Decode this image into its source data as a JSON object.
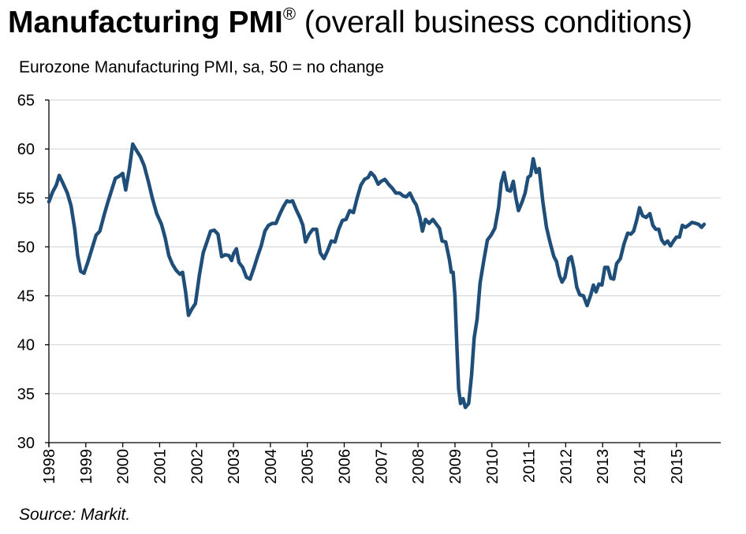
{
  "header": {
    "title_bold": "Manufacturing PMI",
    "title_reg": "®",
    "title_rest": " (overall business conditions)",
    "subtitle": "Eurozone Manufacturing PMI, sa, 50 = no change"
  },
  "footer": {
    "source": "Source: Markit."
  },
  "colors": {
    "line": "#1f4e79",
    "grid": "#d0d0d0",
    "axis": "#000000"
  },
  "chart_data": {
    "type": "line",
    "title": "Manufacturing PMI® (overall business conditions)",
    "subtitle": "Eurozone Manufacturing PMI, sa, 50 = no change",
    "xlabel": "",
    "ylabel": "",
    "ylim": [
      30,
      65
    ],
    "xlim": [
      1998,
      2016.2
    ],
    "yticks": [
      30,
      35,
      40,
      45,
      50,
      55,
      60,
      65
    ],
    "xticks": [
      "1998",
      "1999",
      "2000",
      "2001",
      "2002",
      "2003",
      "2004",
      "2005",
      "2006",
      "2007",
      "2008",
      "2009",
      "2010",
      "2011",
      "2012",
      "2013",
      "2014",
      "2015"
    ],
    "grid": true,
    "series": [
      {
        "points": [
          [
            1998.0,
            54.6
          ],
          [
            1998.1,
            55.6
          ],
          [
            1998.2,
            56.3
          ],
          [
            1998.28,
            57.3
          ],
          [
            1998.38,
            56.5
          ],
          [
            1998.5,
            55.5
          ],
          [
            1998.6,
            54.2
          ],
          [
            1998.7,
            51.8
          ],
          [
            1998.78,
            49.1
          ],
          [
            1998.86,
            47.5
          ],
          [
            1998.95,
            47.3
          ],
          [
            1999.05,
            48.4
          ],
          [
            1999.15,
            49.6
          ],
          [
            1999.28,
            51.2
          ],
          [
            1999.38,
            51.6
          ],
          [
            1999.5,
            53.3
          ],
          [
            1999.6,
            54.6
          ],
          [
            1999.7,
            55.8
          ],
          [
            1999.8,
            57.0
          ],
          [
            1999.9,
            57.2
          ],
          [
            2000.0,
            57.5
          ],
          [
            2000.08,
            55.8
          ],
          [
            2000.18,
            58.0
          ],
          [
            2000.27,
            60.5
          ],
          [
            2000.38,
            59.8
          ],
          [
            2000.48,
            59.2
          ],
          [
            2000.58,
            58.3
          ],
          [
            2000.7,
            56.6
          ],
          [
            2000.8,
            55.0
          ],
          [
            2000.92,
            53.4
          ],
          [
            2001.05,
            52.3
          ],
          [
            2001.15,
            50.9
          ],
          [
            2001.25,
            49.1
          ],
          [
            2001.35,
            48.2
          ],
          [
            2001.45,
            47.6
          ],
          [
            2001.55,
            47.2
          ],
          [
            2001.62,
            47.4
          ],
          [
            2001.7,
            45.5
          ],
          [
            2001.78,
            43.0
          ],
          [
            2001.88,
            43.7
          ],
          [
            2001.97,
            44.2
          ],
          [
            2002.08,
            47.2
          ],
          [
            2002.18,
            49.4
          ],
          [
            2002.28,
            50.5
          ],
          [
            2002.38,
            51.6
          ],
          [
            2002.48,
            51.7
          ],
          [
            2002.58,
            51.3
          ],
          [
            2002.68,
            49.0
          ],
          [
            2002.78,
            49.2
          ],
          [
            2002.88,
            49.1
          ],
          [
            2002.95,
            48.6
          ],
          [
            2003.0,
            49.3
          ],
          [
            2003.08,
            49.8
          ],
          [
            2003.15,
            48.4
          ],
          [
            2003.25,
            47.9
          ],
          [
            2003.35,
            46.9
          ],
          [
            2003.45,
            46.7
          ],
          [
            2003.55,
            47.8
          ],
          [
            2003.65,
            49.0
          ],
          [
            2003.75,
            50.1
          ],
          [
            2003.85,
            51.6
          ],
          [
            2003.95,
            52.2
          ],
          [
            2004.05,
            52.4
          ],
          [
            2004.15,
            52.4
          ],
          [
            2004.25,
            53.3
          ],
          [
            2004.35,
            54.1
          ],
          [
            2004.45,
            54.7
          ],
          [
            2004.52,
            54.6
          ],
          [
            2004.6,
            54.7
          ],
          [
            2004.7,
            53.8
          ],
          [
            2004.8,
            53.0
          ],
          [
            2004.88,
            52.2
          ],
          [
            2004.95,
            50.5
          ],
          [
            2005.05,
            51.3
          ],
          [
            2005.15,
            51.8
          ],
          [
            2005.25,
            51.8
          ],
          [
            2005.35,
            49.4
          ],
          [
            2005.45,
            48.8
          ],
          [
            2005.55,
            49.6
          ],
          [
            2005.65,
            50.6
          ],
          [
            2005.75,
            50.5
          ],
          [
            2005.85,
            51.8
          ],
          [
            2005.95,
            52.7
          ],
          [
            2006.05,
            52.8
          ],
          [
            2006.15,
            53.7
          ],
          [
            2006.25,
            53.5
          ],
          [
            2006.35,
            55.0
          ],
          [
            2006.45,
            56.3
          ],
          [
            2006.55,
            56.9
          ],
          [
            2006.65,
            57.1
          ],
          [
            2006.72,
            57.6
          ],
          [
            2006.82,
            57.2
          ],
          [
            2006.92,
            56.4
          ],
          [
            2007.0,
            56.7
          ],
          [
            2007.1,
            56.9
          ],
          [
            2007.2,
            56.4
          ],
          [
            2007.3,
            56.0
          ],
          [
            2007.4,
            55.5
          ],
          [
            2007.5,
            55.5
          ],
          [
            2007.6,
            55.2
          ],
          [
            2007.68,
            55.1
          ],
          [
            2007.78,
            55.5
          ],
          [
            2007.88,
            54.7
          ],
          [
            2007.95,
            54.3
          ],
          [
            2008.05,
            53.0
          ],
          [
            2008.12,
            51.6
          ],
          [
            2008.2,
            52.8
          ],
          [
            2008.3,
            52.4
          ],
          [
            2008.4,
            52.8
          ],
          [
            2008.5,
            52.3
          ],
          [
            2008.58,
            51.9
          ],
          [
            2008.65,
            50.6
          ],
          [
            2008.75,
            50.5
          ],
          [
            2008.85,
            48.7
          ],
          [
            2008.9,
            47.4
          ],
          [
            2008.95,
            47.4
          ],
          [
            2009.0,
            45.0
          ],
          [
            2009.05,
            40.0
          ],
          [
            2009.1,
            35.5
          ],
          [
            2009.15,
            34.0
          ],
          [
            2009.22,
            34.5
          ],
          [
            2009.28,
            33.6
          ],
          [
            2009.37,
            34.0
          ],
          [
            2009.45,
            36.9
          ],
          [
            2009.52,
            40.7
          ],
          [
            2009.6,
            42.6
          ],
          [
            2009.68,
            46.3
          ],
          [
            2009.78,
            48.6
          ],
          [
            2009.88,
            50.7
          ],
          [
            2009.98,
            51.2
          ],
          [
            2010.08,
            51.9
          ],
          [
            2010.18,
            54.0
          ],
          [
            2010.25,
            56.5
          ],
          [
            2010.33,
            57.6
          ],
          [
            2010.42,
            55.8
          ],
          [
            2010.5,
            55.7
          ],
          [
            2010.58,
            56.7
          ],
          [
            2010.65,
            55.0
          ],
          [
            2010.72,
            53.7
          ],
          [
            2010.82,
            54.6
          ],
          [
            2010.9,
            55.5
          ],
          [
            2010.98,
            57.1
          ],
          [
            2011.05,
            57.3
          ],
          [
            2011.12,
            59.0
          ],
          [
            2011.2,
            57.6
          ],
          [
            2011.28,
            58.0
          ],
          [
            2011.38,
            54.6
          ],
          [
            2011.48,
            52.0
          ],
          [
            2011.58,
            50.4
          ],
          [
            2011.68,
            49.0
          ],
          [
            2011.75,
            48.5
          ],
          [
            2011.83,
            47.1
          ],
          [
            2011.9,
            46.4
          ],
          [
            2011.98,
            46.9
          ],
          [
            2012.08,
            48.8
          ],
          [
            2012.15,
            49.0
          ],
          [
            2012.22,
            47.8
          ],
          [
            2012.3,
            45.9
          ],
          [
            2012.38,
            45.1
          ],
          [
            2012.48,
            45.0
          ],
          [
            2012.58,
            44.0
          ],
          [
            2012.68,
            45.1
          ],
          [
            2012.75,
            46.1
          ],
          [
            2012.82,
            45.4
          ],
          [
            2012.9,
            46.2
          ],
          [
            2012.98,
            46.1
          ],
          [
            2013.06,
            47.9
          ],
          [
            2013.14,
            47.9
          ],
          [
            2013.22,
            46.8
          ],
          [
            2013.3,
            46.7
          ],
          [
            2013.38,
            48.3
          ],
          [
            2013.48,
            48.8
          ],
          [
            2013.58,
            50.3
          ],
          [
            2013.68,
            51.4
          ],
          [
            2013.76,
            51.3
          ],
          [
            2013.84,
            51.6
          ],
          [
            2013.92,
            52.7
          ],
          [
            2014.0,
            54.0
          ],
          [
            2014.08,
            53.2
          ],
          [
            2014.18,
            53.0
          ],
          [
            2014.28,
            53.4
          ],
          [
            2014.36,
            52.2
          ],
          [
            2014.44,
            51.8
          ],
          [
            2014.52,
            51.8
          ],
          [
            2014.6,
            50.7
          ],
          [
            2014.68,
            50.3
          ],
          [
            2014.76,
            50.6
          ],
          [
            2014.84,
            50.1
          ],
          [
            2014.92,
            50.6
          ],
          [
            2015.0,
            51.0
          ],
          [
            2015.08,
            51.0
          ],
          [
            2015.16,
            52.2
          ],
          [
            2015.24,
            52.0
          ],
          [
            2015.32,
            52.2
          ],
          [
            2015.42,
            52.5
          ],
          [
            2015.52,
            52.4
          ],
          [
            2015.6,
            52.3
          ],
          [
            2015.68,
            52.0
          ],
          [
            2015.75,
            52.3
          ]
        ]
      }
    ]
  }
}
